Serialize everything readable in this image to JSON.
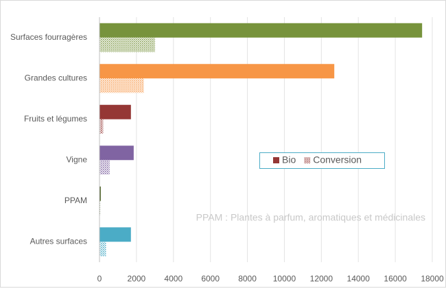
{
  "chart_data": {
    "type": "hbar",
    "categories": [
      "Surfaces fourragères",
      "Grandes cultures",
      "Fruits et légumes",
      "Vigne",
      "PPAM",
      "Autres surfaces"
    ],
    "category_colors": [
      "#77933c",
      "#f79646",
      "#953735",
      "#8064a2",
      "#4f6228",
      "#4bacc6"
    ],
    "series": [
      {
        "name": "Bio",
        "color": "#953735",
        "pattern": "solid",
        "values": [
          17450,
          12700,
          1700,
          1850,
          70,
          1700
        ]
      },
      {
        "name": "Conversion",
        "color": "#953735",
        "pattern": "hatched",
        "values": [
          3000,
          2400,
          200,
          550,
          40,
          350
        ]
      }
    ],
    "xlim": [
      0,
      18000
    ],
    "xticks": [
      0,
      2000,
      4000,
      6000,
      8000,
      10000,
      12000,
      14000,
      16000,
      18000
    ],
    "grid": true,
    "annotation": "PPAM : Plantes à parfum, aromatiques et médicinales"
  }
}
